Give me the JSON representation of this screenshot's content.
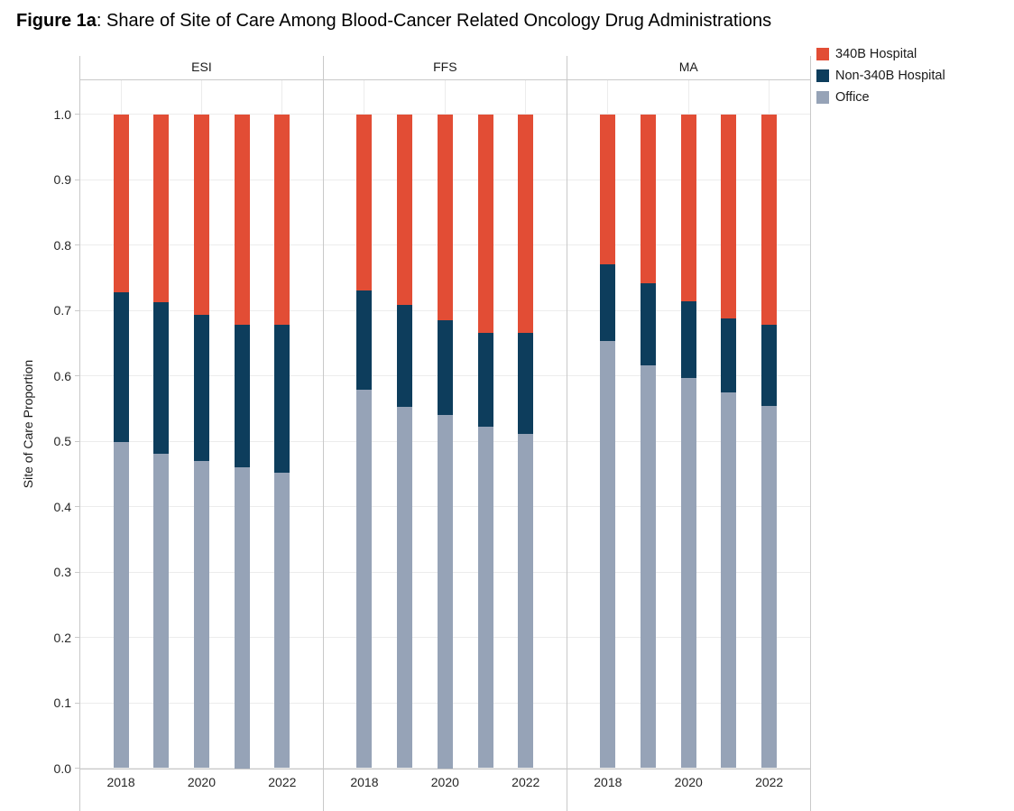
{
  "figure": {
    "title_prefix": "Figure 1a",
    "title_rest": ": Share of Site of Care Among Blood-Cancer Related Oncology Drug Administrations"
  },
  "chart_data": {
    "type": "bar",
    "stacked": true,
    "title": "Figure 1a: Share of Site of Care Among Blood-Cancer Related Oncology Drug Administrations",
    "ylabel": "Site of Care Proportion",
    "xlabel": "",
    "ylim": [
      0.0,
      1.0
    ],
    "grid": true,
    "legend_position": "top-right",
    "y_tick_labels": [
      "1.0",
      "0.9",
      "0.8",
      "0.7",
      "0.6",
      "0.5",
      "0.4",
      "0.3",
      "0.2",
      "0.1",
      "0.0"
    ],
    "categories": [
      "2018",
      "2019",
      "2020",
      "2021",
      "2022"
    ],
    "x_tick_labels_shown": [
      "2018",
      "2020",
      "2022"
    ],
    "stack_order_bottom_to_top": [
      "Office",
      "Non-340B Hospital",
      "340B Hospital"
    ],
    "colors": {
      "340B Hospital": "#E24D35",
      "Non-340B Hospital": "#0D3D5C",
      "Office": "#96A3B7",
      "panel_border": "#C9C9C9",
      "gridline": "#ECECEC",
      "text": "#1A1A1A"
    },
    "facets": [
      {
        "label": "ESI",
        "series": [
          {
            "name": "Office",
            "color": "#96A3B7",
            "values": [
              0.498,
              0.481,
              0.469,
              0.46,
              0.452
            ]
          },
          {
            "name": "Non-340B Hospital",
            "color": "#0D3D5C",
            "values": [
              0.229,
              0.232,
              0.224,
              0.218,
              0.226
            ]
          },
          {
            "name": "340B Hospital",
            "color": "#E24D35",
            "values": [
              0.273,
              0.287,
              0.307,
              0.322,
              0.322
            ]
          }
        ]
      },
      {
        "label": "FFS",
        "series": [
          {
            "name": "Office",
            "color": "#96A3B7",
            "values": [
              0.578,
              0.553,
              0.54,
              0.522,
              0.511
            ]
          },
          {
            "name": "Non-340B Hospital",
            "color": "#0D3D5C",
            "values": [
              0.153,
              0.155,
              0.145,
              0.144,
              0.154
            ]
          },
          {
            "name": "340B Hospital",
            "color": "#E24D35",
            "values": [
              0.269,
              0.292,
              0.315,
              0.334,
              0.335
            ]
          }
        ]
      },
      {
        "label": "MA",
        "series": [
          {
            "name": "Office",
            "color": "#96A3B7",
            "values": [
              0.653,
              0.616,
              0.596,
              0.574,
              0.554
            ]
          },
          {
            "name": "Non-340B Hospital",
            "color": "#0D3D5C",
            "values": [
              0.118,
              0.125,
              0.118,
              0.114,
              0.124
            ]
          },
          {
            "name": "340B Hospital",
            "color": "#E24D35",
            "values": [
              0.229,
              0.259,
              0.286,
              0.312,
              0.322
            ]
          }
        ]
      }
    ],
    "legend": [
      {
        "label": "340B Hospital",
        "color": "#E24D35"
      },
      {
        "label": "Non-340B Hospital",
        "color": "#0D3D5C"
      },
      {
        "label": "Office",
        "color": "#96A3B7"
      }
    ]
  }
}
